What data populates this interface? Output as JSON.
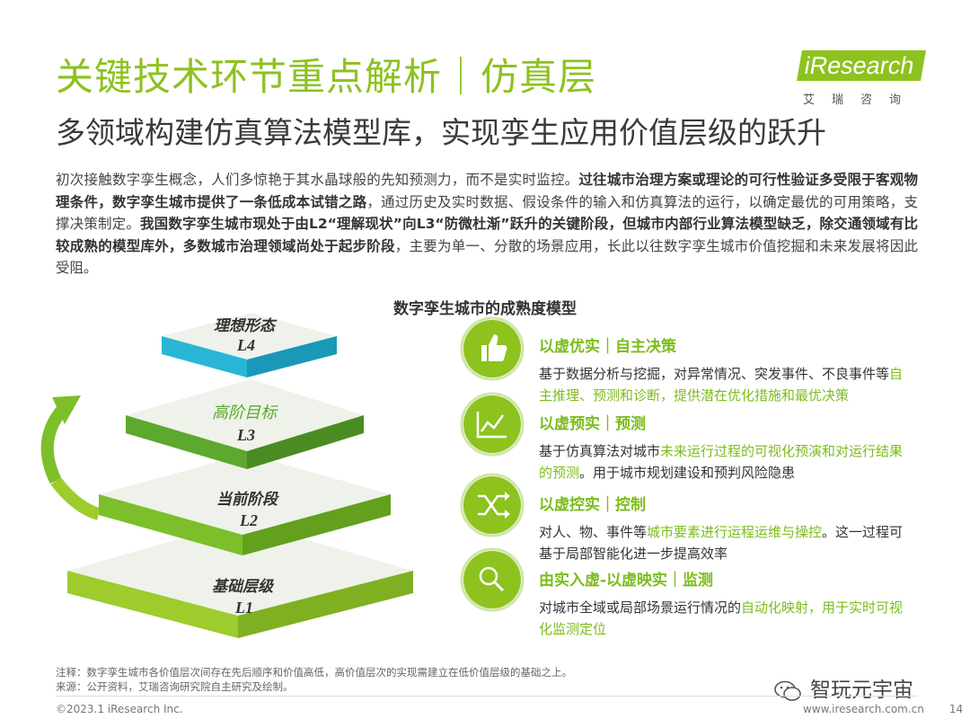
{
  "header": {
    "title": "关键技术环节重点解析｜仿真层",
    "subtitle": "多领域构建仿真算法模型库，实现孪生应用价值层级的跃升",
    "brand": "iResearch",
    "brand_cn": "艾瑞咨询",
    "accent_color": "#8dc21f"
  },
  "intro": {
    "p1": "初次接触数字孪生概念，人们多惊艳于其水晶球般的先知预测力，而不是实时监控。",
    "b1": "过往城市治理方案或理论的可行性验证多受限于客观物理条件，数字孪生城市提供了一条低成本试错之路",
    "p2": "，通过历史及实时数据、假设条件的输入和仿真算法的运行，以确定最优的可用策略，支撑决策制定。",
    "b2": "我国数字孪生城市现处于由L2“理解现状”向L3“防微杜渐”跃升的关键阶段，但城市内部行业算法模型缺乏，除交通领域有比较成熟的模型库外，多数城市治理领域尚处于起步阶段",
    "p3": "，主要为单一、分散的场景应用，长此以往数字孪生城市价值挖掘和未来发展将因此受阻。"
  },
  "diagram": {
    "title": "数字孪生城市的成熟度模型",
    "layers": [
      {
        "name": "理想形态",
        "level": "L4",
        "color": "#29b6d6"
      },
      {
        "name": "高阶目标",
        "level": "L3",
        "color": "#5da82e"
      },
      {
        "name": "当前阶段",
        "level": "L2",
        "color": "#7cbf2a"
      },
      {
        "name": "基础层级",
        "level": "L1",
        "color": "#9dcc2c"
      }
    ],
    "items": [
      {
        "icon": "thumbs-up-icon",
        "title": "以虚优实｜自主决策",
        "desc_a": "基于数据分析与挖掘，对异常情况、突发事件、不良事件等",
        "desc_hl": "自主推理、预测和诊断，提供潜在优化措施和最优决策",
        "desc_b": ""
      },
      {
        "icon": "trend-chart-icon",
        "title": "以虚预实｜预测",
        "desc_a": "基于仿真算法对城市",
        "desc_hl": "未来运行过程的可视化预演和对运行结果的预测",
        "desc_b": "。用于城市规划建设和预判风险隐患"
      },
      {
        "icon": "shuffle-icon",
        "title": "以虚控实｜控制",
        "desc_a": "对人、物、事件等",
        "desc_hl": "城市要素进行运程运维与操控",
        "desc_b": "。这一过程可基于局部智能化进一步提高效率"
      },
      {
        "icon": "search-icon",
        "title": "由实入虚-以虚映实｜监测",
        "desc_a": "对城市全域或局部场景运行情况的",
        "desc_hl": "自动化映射，用于实时可视化监测定位",
        "desc_b": ""
      }
    ]
  },
  "notes": {
    "note": "注释：数字孪生城市各价值层次间存在先后顺序和价值高低，高价值层次的实现需建立在低价值层级的基础之上。",
    "source": "来源：公开资料，艾瑞咨询研究院自主研究及绘制。"
  },
  "footer": {
    "copyright": "©2023.1 iResearch Inc.",
    "url": "www.iresearch.com.cn",
    "page": "14",
    "wechat": "智玩元宇宙"
  }
}
